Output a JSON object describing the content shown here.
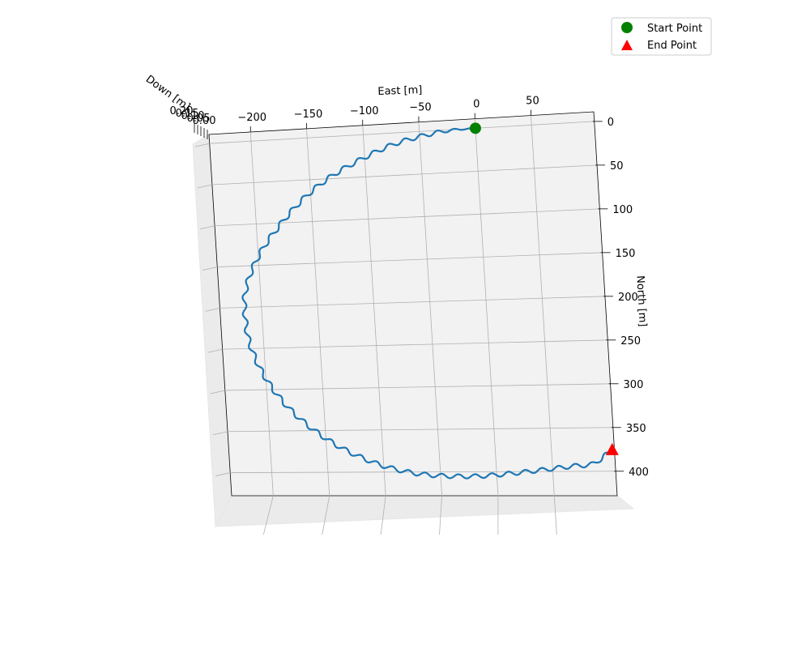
{
  "chart_data": {
    "type": "line",
    "projection": "3d",
    "xlabel": "East [m]",
    "ylabel": "North [m]",
    "zlabel": "Down [m]",
    "xlim": [
      -237,
      106
    ],
    "ylim": [
      -11,
      428
    ],
    "x_ticks": [
      -200,
      -150,
      -100,
      -50,
      0,
      50
    ],
    "x_tick_labels": [
      "−200",
      "−150",
      "−100",
      "−50",
      "0",
      "50"
    ],
    "y_ticks": [
      0,
      50,
      100,
      150,
      200,
      250,
      300,
      350,
      400
    ],
    "y_tick_labels": [
      "0",
      "50",
      "100",
      "150",
      "200",
      "250",
      "300",
      "350",
      "400"
    ],
    "z_tick_labels": [
      "0.20",
      "0.15",
      "0.10",
      "0.05",
      "0.00"
    ],
    "grid": true,
    "legend_position": "top-right",
    "trajectory": {
      "color": "#1f77b4",
      "points": [
        [
          0,
          0
        ],
        [
          -25,
          1
        ],
        [
          -50,
          6
        ],
        [
          -75,
          14
        ],
        [
          -100,
          27
        ],
        [
          -125,
          43
        ],
        [
          -145,
          60
        ],
        [
          -163,
          80
        ],
        [
          -180,
          104
        ],
        [
          -195,
          129
        ],
        [
          -207,
          157
        ],
        [
          -214,
          185
        ],
        [
          -215,
          212
        ],
        [
          -213,
          240
        ],
        [
          -206,
          270
        ],
        [
          -195,
          298
        ],
        [
          -181,
          323
        ],
        [
          -164,
          345
        ],
        [
          -144,
          365
        ],
        [
          -122,
          381
        ],
        [
          -97,
          394
        ],
        [
          -70,
          402
        ],
        [
          -42,
          405
        ],
        [
          -14,
          405
        ],
        [
          14,
          402
        ],
        [
          42,
          398
        ],
        [
          68,
          394
        ],
        [
          85,
          392
        ],
        [
          93,
          386
        ],
        [
          104,
          376
        ]
      ]
    },
    "series": [
      {
        "name": "Start Point",
        "marker": "circle",
        "color": "#008000",
        "x": [
          0
        ],
        "y": [
          0
        ]
      },
      {
        "name": "End Point",
        "marker": "triangle",
        "color": "#ff0000",
        "x": [
          104
        ],
        "y": [
          376
        ]
      }
    ]
  }
}
